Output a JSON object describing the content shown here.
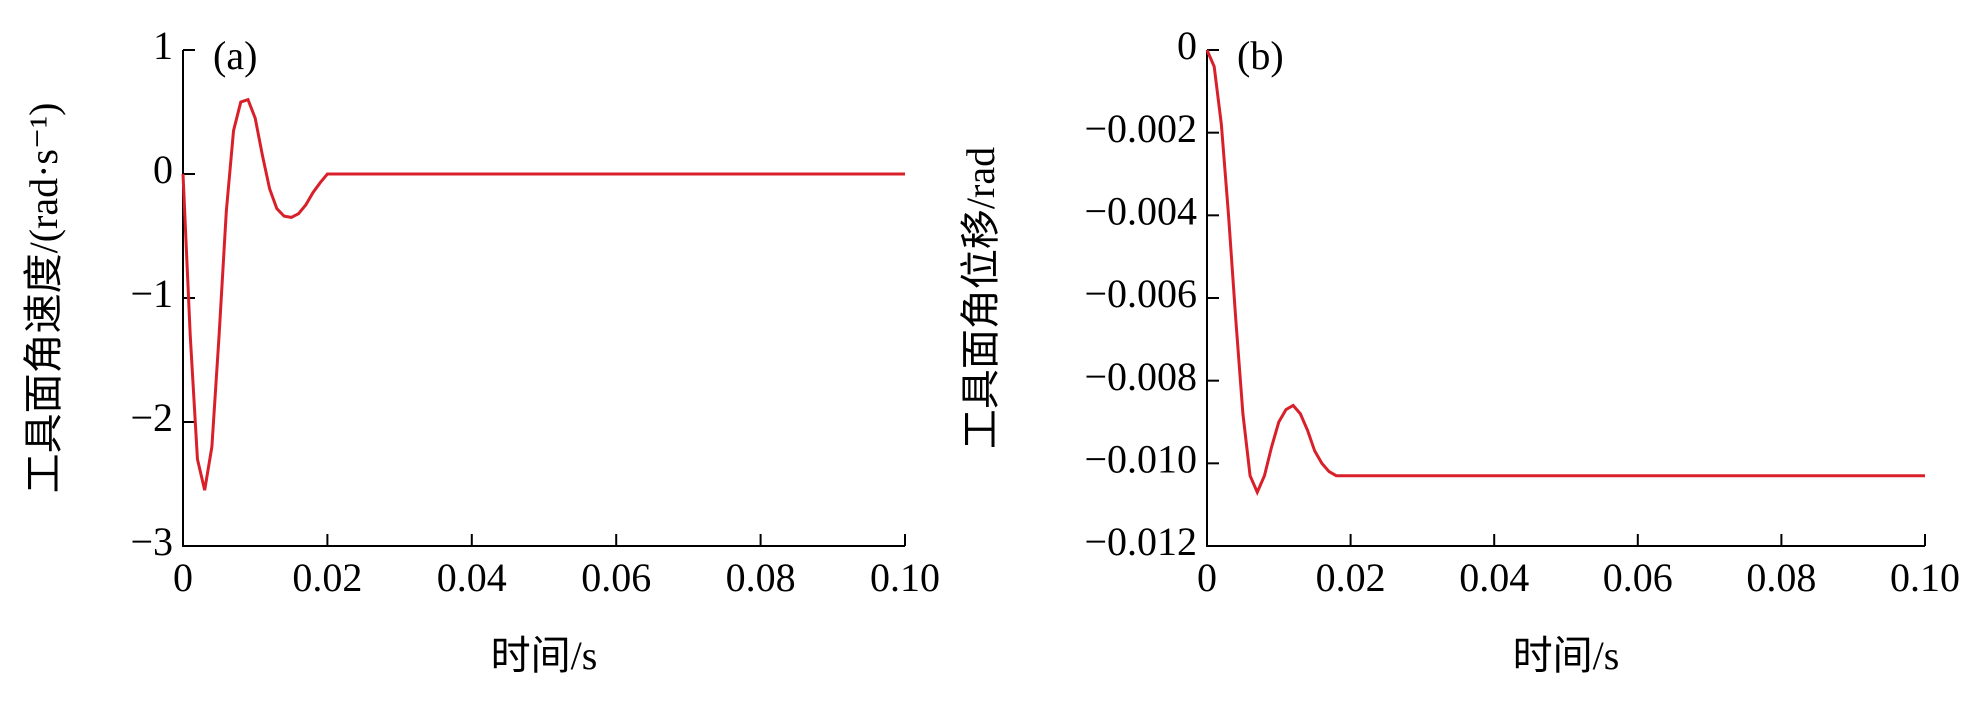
{
  "chart_data": [
    {
      "type": "line",
      "label": "(a)",
      "xlabel": "时间/s",
      "ylabel": "工具面角速度/(rad·s⁻¹)",
      "xlim": [
        0,
        0.1
      ],
      "ylim": [
        -3,
        1
      ],
      "xticks": [
        0,
        0.02,
        0.04,
        0.06,
        0.08,
        {
          "value": 0.1,
          "label": "0.10"
        }
      ],
      "yticks": [
        {
          "value": -3,
          "label": "−3"
        },
        {
          "value": -2,
          "label": "−2"
        },
        {
          "value": -1,
          "label": "−1"
        },
        0,
        1
      ],
      "x": [
        0,
        0.001,
        0.002,
        0.003,
        0.004,
        0.005,
        0.006,
        0.007,
        0.008,
        0.009,
        0.01,
        0.011,
        0.012,
        0.013,
        0.014,
        0.015,
        0.016,
        0.017,
        0.018,
        0.019,
        0.02,
        0.1
      ],
      "series": [
        {
          "color": "#d9202a",
          "values": [
            0,
            -1.3,
            -2.3,
            -2.55,
            -2.2,
            -1.3,
            -0.3,
            0.35,
            0.58,
            0.6,
            0.45,
            0.15,
            -0.12,
            -0.28,
            -0.34,
            -0.35,
            -0.32,
            -0.25,
            -0.15,
            -0.07,
            0,
            0
          ]
        }
      ]
    },
    {
      "type": "line",
      "label": "(b)",
      "xlabel": "时间/s",
      "ylabel": "工具面角位移/rad",
      "xlim": [
        0,
        0.1
      ],
      "ylim": [
        -0.012,
        0
      ],
      "xticks": [
        0,
        0.02,
        0.04,
        0.06,
        0.08,
        {
          "value": 0.1,
          "label": "0.10"
        }
      ],
      "yticks": [
        {
          "value": -0.012,
          "label": "−0.012"
        },
        {
          "value": -0.01,
          "label": "−0.010"
        },
        {
          "value": -0.008,
          "label": "−0.008"
        },
        {
          "value": -0.006,
          "label": "−0.006"
        },
        {
          "value": -0.004,
          "label": "−0.004"
        },
        {
          "value": -0.002,
          "label": "−0.002"
        },
        0
      ],
      "x": [
        0,
        0.001,
        0.002,
        0.003,
        0.004,
        0.005,
        0.006,
        0.007,
        0.008,
        0.009,
        0.01,
        0.011,
        0.012,
        0.013,
        0.014,
        0.015,
        0.016,
        0.017,
        0.018,
        0.019,
        0.02,
        0.1
      ],
      "series": [
        {
          "color": "#d9202a",
          "values": [
            0,
            -0.0004,
            -0.0018,
            -0.004,
            -0.0065,
            -0.0088,
            -0.0103,
            -0.0107,
            -0.0103,
            -0.0096,
            -0.009,
            -0.0087,
            -0.0086,
            -0.0088,
            -0.0092,
            -0.0097,
            -0.01,
            -0.0102,
            -0.0103,
            -0.0103,
            -0.0103,
            -0.0103
          ]
        }
      ]
    }
  ]
}
